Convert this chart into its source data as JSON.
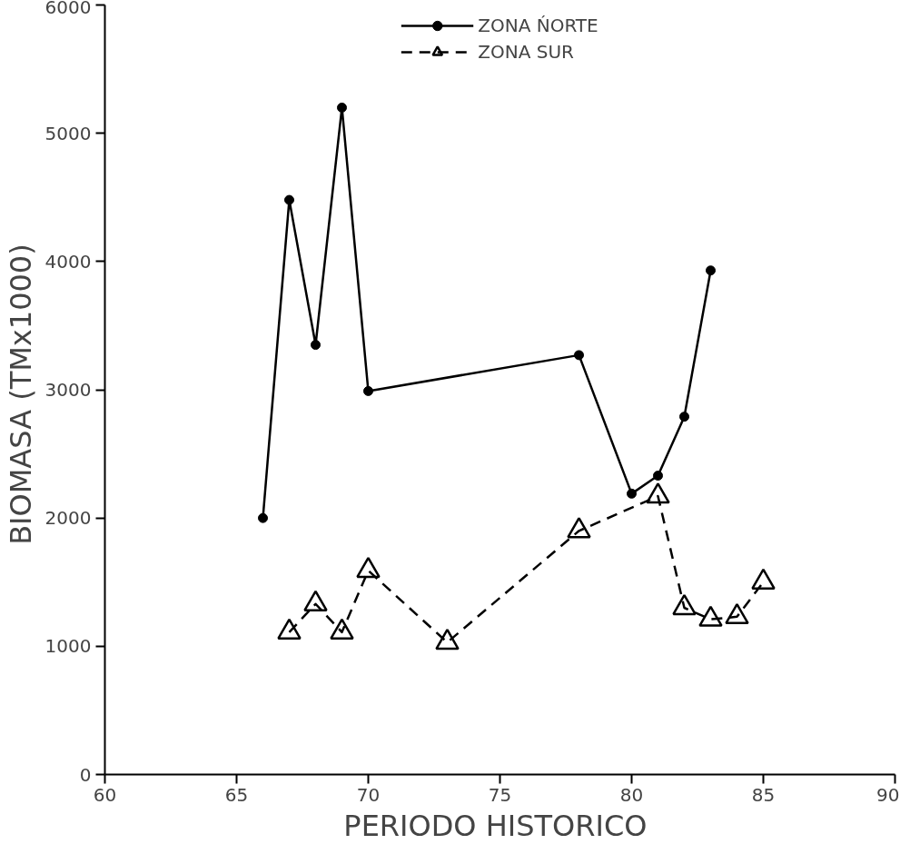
{
  "chart_data": {
    "type": "line",
    "xlabel": "PERIODO  HISTORICO",
    "ylabel": "BIOMASA  (TMx1000)",
    "xlim": [
      60,
      90
    ],
    "xticks": [
      60,
      65,
      70,
      75,
      80,
      85,
      90
    ],
    "ylim": [
      0,
      6000
    ],
    "yticks": [
      0,
      1000,
      2000,
      3000,
      4000,
      5000,
      6000
    ],
    "grid": false,
    "legend": "top",
    "series": [
      {
        "name": "ZONA ŃORTE",
        "color": "#000000",
        "marker": "circle",
        "line_style": "solid",
        "x": [
          66,
          67,
          68,
          69,
          70,
          78,
          80,
          81,
          82,
          83
        ],
        "values": [
          2000,
          4480,
          3350,
          5200,
          2990,
          3270,
          2190,
          2330,
          2790,
          3930
        ]
      },
      {
        "name": "ZONA SUR",
        "color": "#000000",
        "marker": "triangle",
        "line_style": "dashed",
        "x": [
          67,
          68,
          69,
          70,
          73,
          78,
          81,
          82,
          83,
          84,
          85
        ],
        "values": [
          1110,
          1330,
          1110,
          1590,
          1030,
          1900,
          2170,
          1300,
          1210,
          1230,
          1500
        ]
      }
    ]
  }
}
